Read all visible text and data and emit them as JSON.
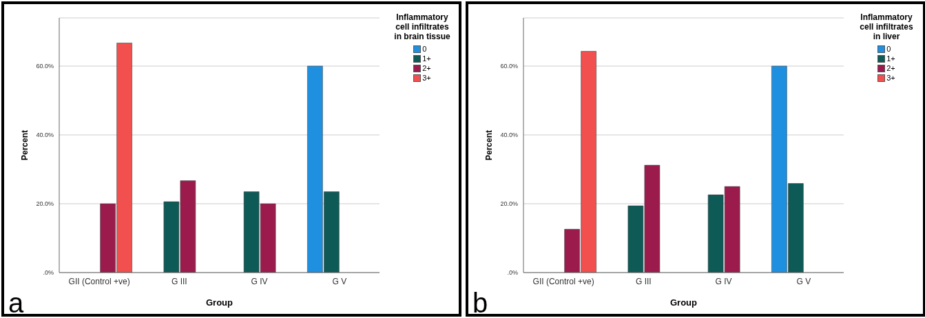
{
  "chart_data": [
    {
      "type": "bar",
      "xlabel": "Group",
      "ylabel": "Percent",
      "legend_title": "Inflammatory cell infiltrates in brain tissue",
      "categories": [
        "GII (Control +ve)",
        "G III",
        "G IV",
        "G V"
      ],
      "series": [
        {
          "name": "0",
          "color": "#1f8fe0",
          "values": [
            0,
            0,
            0,
            60
          ]
        },
        {
          "name": "1+",
          "color": "#0d5a57",
          "values": [
            0,
            20.6,
            23.5,
            23.5
          ]
        },
        {
          "name": "2+",
          "color": "#9b1b4d",
          "values": [
            20,
            26.7,
            20,
            0
          ]
        },
        {
          "name": "3+",
          "color": "#f24f4f",
          "values": [
            66.7,
            0,
            0,
            0
          ]
        }
      ],
      "ylim": [
        0,
        74
      ],
      "yticks": [
        {
          "value": 0,
          "label": ".0%"
        },
        {
          "value": 20,
          "label": "20.0%"
        },
        {
          "value": 40,
          "label": "40.0%"
        },
        {
          "value": 60,
          "label": "60.0%"
        }
      ],
      "grid": "y",
      "legend": "top right",
      "annotations": [
        "a"
      ]
    },
    {
      "type": "bar",
      "xlabel": "Group",
      "ylabel": "Percent",
      "legend_title": "Inflammatory cell infiltrates in liver",
      "categories": [
        "GII (Control +ve)",
        "G III",
        "G IV",
        "G V"
      ],
      "series": [
        {
          "name": "0",
          "color": "#1f8fe0",
          "values": [
            0,
            0,
            0,
            60
          ]
        },
        {
          "name": "1+",
          "color": "#0d5a57",
          "values": [
            0,
            19.4,
            22.6,
            25.9
          ]
        },
        {
          "name": "2+",
          "color": "#9b1b4d",
          "values": [
            12.6,
            31.2,
            25,
            0
          ]
        },
        {
          "name": "3+",
          "color": "#f24f4f",
          "values": [
            64.3,
            0,
            0,
            0
          ]
        }
      ],
      "ylim": [
        0,
        74
      ],
      "yticks": [
        {
          "value": 0,
          "label": ".0%"
        },
        {
          "value": 20,
          "label": "20.0%"
        },
        {
          "value": 40,
          "label": "40.0%"
        },
        {
          "value": 60,
          "label": "60.0%"
        }
      ],
      "grid": "y",
      "legend": "top right",
      "annotations": [
        "b"
      ]
    }
  ]
}
